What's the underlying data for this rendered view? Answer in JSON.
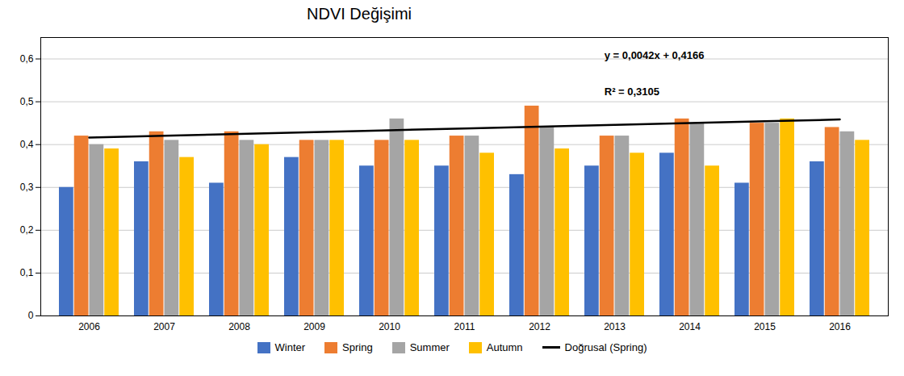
{
  "chart_data": {
    "type": "bar",
    "title": "NDVI Değişimi",
    "categories": [
      "2006",
      "2007",
      "2008",
      "2009",
      "2010",
      "2011",
      "2012",
      "2013",
      "2014",
      "2015",
      "2016"
    ],
    "series": [
      {
        "name": "Winter",
        "color": "#4472C4",
        "values": [
          0.3,
          0.36,
          0.31,
          0.37,
          0.35,
          0.35,
          0.33,
          0.35,
          0.38,
          0.31,
          0.36
        ]
      },
      {
        "name": "Spring",
        "color": "#ED7D31",
        "values": [
          0.42,
          0.43,
          0.43,
          0.41,
          0.41,
          0.42,
          0.49,
          0.42,
          0.46,
          0.45,
          0.44
        ]
      },
      {
        "name": "Summer",
        "color": "#A5A5A5",
        "values": [
          0.4,
          0.41,
          0.41,
          0.41,
          0.46,
          0.42,
          0.44,
          0.42,
          0.45,
          0.45,
          0.43
        ]
      },
      {
        "name": "Autumn",
        "color": "#FFC000",
        "values": [
          0.39,
          0.37,
          0.4,
          0.41,
          0.41,
          0.38,
          0.39,
          0.38,
          0.35,
          0.46,
          0.41
        ]
      },
      {
        "name": "Doğrusal (Spring)",
        "type": "line",
        "color": "#000000",
        "values": [
          0.4166,
          0.4208,
          0.425,
          0.4292,
          0.4334,
          0.4376,
          0.4418,
          0.446,
          0.4502,
          0.4544,
          0.4586
        ]
      }
    ],
    "ylim": [
      0,
      0.65
    ],
    "yticks": [
      0,
      {
        "value": 0.1,
        "label": "0,1"
      },
      {
        "value": 0.2,
        "label": "0,2"
      },
      {
        "value": 0.3,
        "label": "0,3"
      },
      {
        "value": 0.4,
        "label": "0,4"
      },
      {
        "value": 0.5,
        "label": "0,5"
      },
      {
        "value": 0.6,
        "label": "0,6"
      }
    ],
    "grid": true,
    "legend": "bottom",
    "annotations": [
      "y = 0,0042x + 0,4166",
      "R² = 0,3105"
    ]
  }
}
